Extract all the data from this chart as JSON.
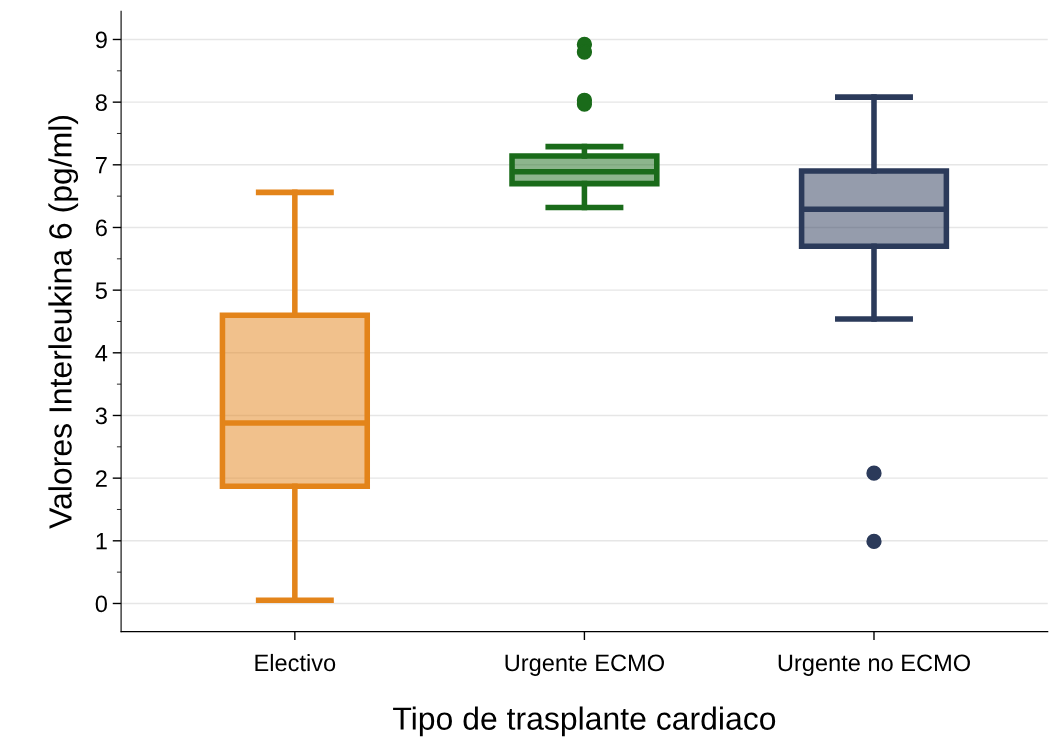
{
  "chart_data": {
    "type": "box",
    "xlabel": "Tipo de trasplante cardiaco",
    "ylabel": "Valores Interleukina 6 (pg/ml)",
    "categories": [
      "Electivo",
      "Urgente ECMO",
      "Urgente no ECMO"
    ],
    "colors": [
      "#e3841a",
      "#1a6b1a",
      "#2b3a5a"
    ],
    "boxes": [
      {
        "low": 0.05,
        "q1": 1.87,
        "median": 2.88,
        "q3": 4.6,
        "high": 6.56
      },
      {
        "low": 6.32,
        "q1": 6.7,
        "median": 6.89,
        "q3": 7.14,
        "high": 7.29,
        "outliers": [
          8.92,
          8.8,
          8.03,
          7.97
        ]
      },
      {
        "low": 4.54,
        "q1": 5.7,
        "median": 6.29,
        "q3": 6.9,
        "high": 8.08,
        "outliers": [
          2.08,
          0.99
        ]
      }
    ],
    "ylim": [
      -0.45,
      9.45
    ],
    "yticks": [
      0,
      1,
      2,
      3,
      4,
      5,
      6,
      7,
      8,
      9
    ],
    "grid": "y",
    "legend": false
  }
}
